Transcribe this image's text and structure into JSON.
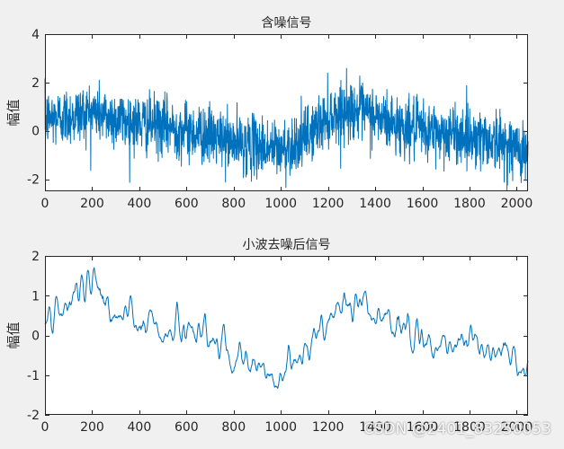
{
  "figure": {
    "background": "#f0f0f0",
    "line_color": "#0072bd"
  },
  "watermark": "CSDN @2401_83250053",
  "chart_data": [
    {
      "type": "line",
      "title": "含噪信号",
      "xlabel": "",
      "ylabel": "幅值",
      "xlim": [
        0,
        2048
      ],
      "ylim": [
        -2.5,
        4
      ],
      "xticks": [
        0,
        200,
        400,
        600,
        800,
        1000,
        1200,
        1400,
        1600,
        1800,
        2000
      ],
      "yticks": [
        -2,
        0,
        2,
        4
      ],
      "grid": false,
      "series": [
        {
          "x": [
            0,
            100,
            200,
            300,
            400,
            500,
            600,
            700,
            800,
            900,
            1000,
            1100,
            1200,
            1300,
            1400,
            1500,
            1600,
            1700,
            1800,
            1900,
            2000,
            2048
          ],
          "values": [
            0.5,
            0.6,
            0.8,
            0.5,
            0.3,
            0.2,
            0.0,
            -0.2,
            -0.5,
            -0.6,
            -0.8,
            -0.3,
            0.6,
            0.9,
            0.6,
            0.2,
            0.0,
            -0.1,
            -0.2,
            -0.4,
            -0.7,
            -0.9
          ],
          "noise_std": 0.6,
          "points": 2048
        }
      ]
    },
    {
      "type": "line",
      "title": "小波去噪后信号",
      "xlabel": "",
      "ylabel": "幅值",
      "xlim": [
        0,
        2048
      ],
      "ylim": [
        -2,
        2
      ],
      "xticks": [
        0,
        200,
        400,
        600,
        800,
        1000,
        1200,
        1400,
        1600,
        1800,
        2000
      ],
      "yticks": [
        -2,
        -1,
        0,
        1,
        2
      ],
      "grid": false,
      "series": [
        {
          "x": [
            0,
            100,
            200,
            300,
            400,
            500,
            600,
            700,
            800,
            900,
            1000,
            1100,
            1200,
            1300,
            1400,
            1500,
            1600,
            1700,
            1800,
            1900,
            2000,
            2048
          ],
          "values": [
            0.4,
            0.7,
            1.2,
            0.6,
            0.3,
            0.2,
            0.1,
            -0.1,
            -0.6,
            -0.8,
            -1.2,
            -0.3,
            0.6,
            1.0,
            0.6,
            0.2,
            -0.1,
            -0.1,
            -0.2,
            -0.5,
            -0.7,
            -1.1
          ],
          "noise_std": 0.22,
          "points": 2048
        }
      ]
    }
  ]
}
